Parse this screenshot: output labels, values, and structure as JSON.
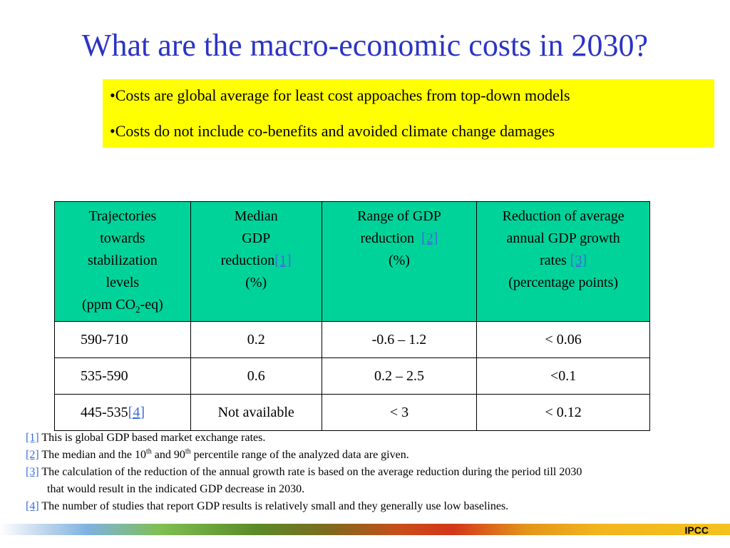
{
  "title": "What are the macro-economic costs in 2030?",
  "notes": [
    "•Costs are global average for least cost appoaches from top-down models",
    "•Costs do not include co-benefits and avoided climate change damages"
  ],
  "table": {
    "header": {
      "col1": {
        "line1": "Trajectories",
        "line2": "towards",
        "line3": "stabilization",
        "line4": "levels",
        "pre": "(ppm CO",
        "sub": "2",
        "post": "-eq)"
      },
      "col2": {
        "line1": "Median",
        "line2": "GDP",
        "line3": "reduction",
        "ref": "[1]",
        "line4": "(%)"
      },
      "col3": {
        "line1": "Range of GDP",
        "line2": "reduction",
        "ref": "[2]",
        "line3": "(%)"
      },
      "col4": {
        "line1": "Reduction of average",
        "line2": "annual GDP growth",
        "line3": "rates",
        "ref": "[3]",
        "line4": "(percentage points)"
      }
    },
    "rows": [
      {
        "level": "590-710",
        "ref": "",
        "median": "0.2",
        "range": "-0.6 – 1.2",
        "growth": "< 0.06"
      },
      {
        "level": "535-590",
        "ref": "",
        "median": "0.6",
        "range": "0.2 – 2.5",
        "growth": "<0.1"
      },
      {
        "level": "445-535",
        "ref": "[4]",
        "median": "Not available",
        "range": "< 3",
        "growth": "< 0.12"
      }
    ]
  },
  "footnotes": {
    "fn1": {
      "ref": "[1]",
      "text": " This is global GDP based market exchange rates."
    },
    "fn2": {
      "ref": "[2]",
      "pre": " The median and the 10",
      "sup1": "th",
      "mid": " and 90",
      "sup2": "th",
      "post": " percentile range of the analyzed data are given."
    },
    "fn3": {
      "ref": "[3]",
      "text": " The calculation of the reduction of the annual growth rate is based on the average reduction during the period till 2030",
      "cont": "that would result in the indicated GDP decrease in 2030."
    },
    "fn4": {
      "ref": "[4]",
      "text": " The number of studies that report GDP results is relatively small and they generally use low baselines."
    }
  },
  "brand": "IPCC"
}
